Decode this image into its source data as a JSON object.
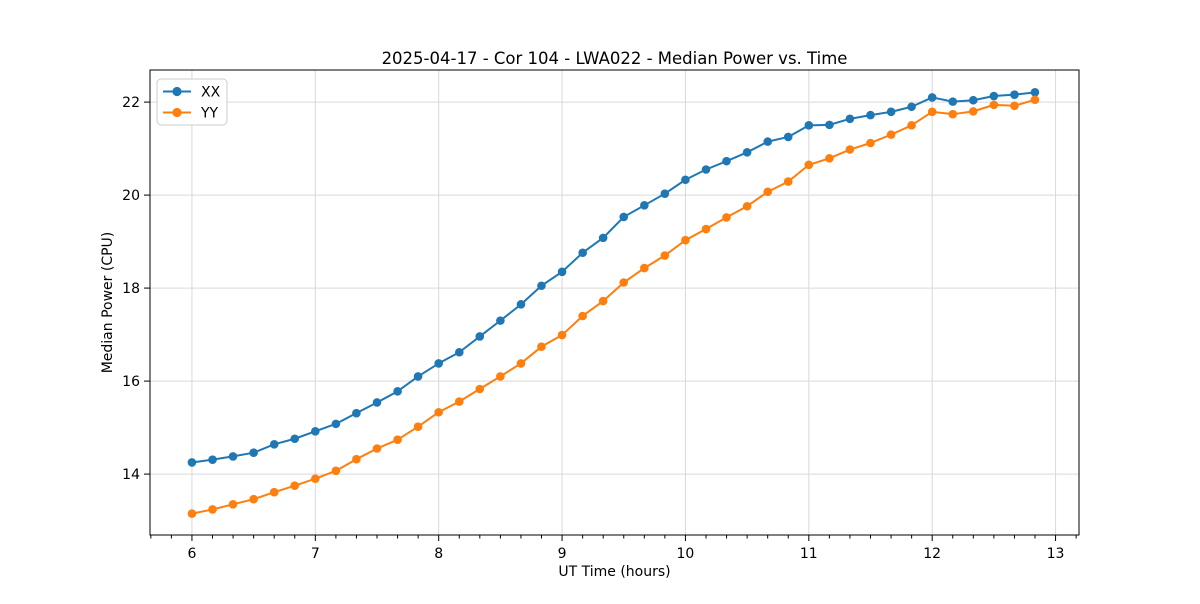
{
  "chart_data": {
    "type": "line",
    "title": "2025-04-17 - Cor 104 - LWA022 - Median Power vs. Time",
    "xlabel": "UT Time (hours)",
    "ylabel": "Median Power (CPU)",
    "xlim": [
      5.66,
      13.19
    ],
    "ylim": [
      12.69,
      22.69
    ],
    "x_ticks": [
      "6",
      "7",
      "8",
      "9",
      "10",
      "11",
      "12",
      "13"
    ],
    "x_tick_values": [
      6,
      7,
      8,
      9,
      10,
      11,
      12,
      13
    ],
    "y_ticks": [
      "14",
      "16",
      "18",
      "20",
      "22"
    ],
    "y_tick_values": [
      14,
      16,
      18,
      20,
      22
    ],
    "x_minor_step": 0.166667,
    "grid": true,
    "grid_color": "#d9d9d9",
    "legend_position": "upper-left",
    "x": [
      6.0,
      6.167,
      6.333,
      6.5,
      6.667,
      6.833,
      7.0,
      7.167,
      7.333,
      7.5,
      7.667,
      7.833,
      8.0,
      8.167,
      8.333,
      8.5,
      8.667,
      8.833,
      9.0,
      9.167,
      9.333,
      9.5,
      9.667,
      9.833,
      10.0,
      10.167,
      10.333,
      10.5,
      10.667,
      10.833,
      11.0,
      11.167,
      11.333,
      11.5,
      11.667,
      11.833,
      12.0,
      12.167,
      12.333,
      12.5,
      12.667,
      12.833
    ],
    "series": [
      {
        "name": "XX",
        "color": "#1f77b4",
        "values": [
          14.25,
          14.31,
          14.38,
          14.46,
          14.64,
          14.76,
          14.92,
          15.08,
          15.31,
          15.54,
          15.78,
          16.1,
          16.38,
          16.62,
          16.96,
          17.3,
          17.65,
          18.05,
          18.35,
          18.76,
          19.08,
          19.53,
          19.78,
          20.03,
          20.33,
          20.55,
          20.73,
          20.92,
          21.15,
          21.25,
          21.5,
          21.51,
          21.64,
          21.72,
          21.79,
          21.9,
          22.1,
          22.01,
          22.04,
          22.13,
          22.16,
          22.21
        ]
      },
      {
        "name": "YY",
        "color": "#ff7f0e",
        "values": [
          13.15,
          13.24,
          13.35,
          13.46,
          13.61,
          13.75,
          13.9,
          14.07,
          14.32,
          14.55,
          14.74,
          15.02,
          15.33,
          15.56,
          15.83,
          16.1,
          16.38,
          16.74,
          16.99,
          17.4,
          17.72,
          18.12,
          18.43,
          18.7,
          19.03,
          19.27,
          19.52,
          19.76,
          20.07,
          20.29,
          20.65,
          20.79,
          20.98,
          21.12,
          21.3,
          21.5,
          21.79,
          21.74,
          21.8,
          21.94,
          21.92,
          22.05
        ]
      }
    ]
  },
  "colors": {
    "background": "#ffffff",
    "spine": "#000000",
    "grid": "#d9d9d9",
    "text": "#000000",
    "legend_border": "#cccccc"
  }
}
